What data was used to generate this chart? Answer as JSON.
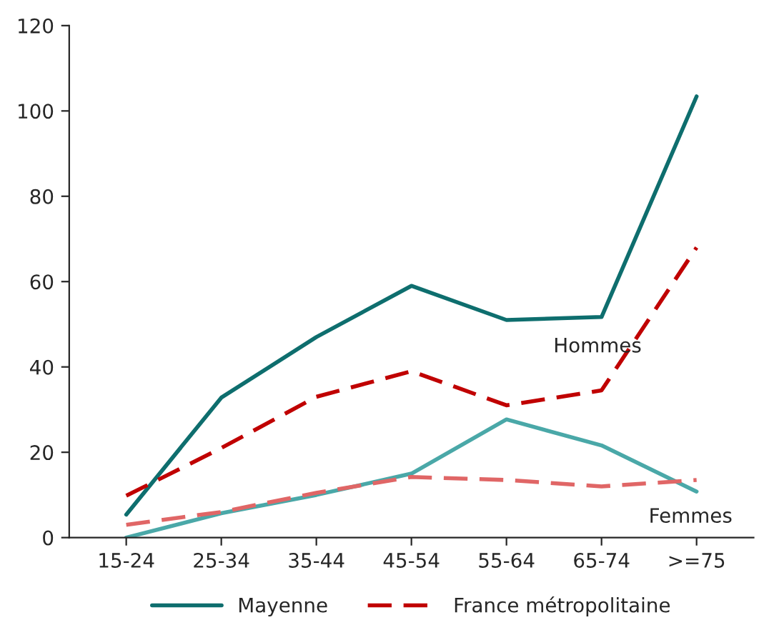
{
  "chart_data": {
    "type": "line",
    "categories": [
      "15-24",
      "25-34",
      "35-44",
      "45-54",
      "55-64",
      "65-74",
      ">=75"
    ],
    "ylim": [
      0,
      120
    ],
    "yticks": [
      0,
      20,
      40,
      60,
      80,
      100,
      120
    ],
    "grid": false,
    "legend": "bottom",
    "marker": "none",
    "series": [
      {
        "name": "Mayenne",
        "color": "#0e6e6e",
        "line_style": "solid",
        "values": [
          5.4,
          32.8,
          47,
          59,
          51,
          51.7,
          103.4
        ]
      },
      {
        "name": "France métropolitaine",
        "color": "#c00000",
        "line_style": "dashed",
        "values": [
          9.8,
          21,
          33,
          39,
          31,
          34.5,
          68
        ]
      },
      {
        "color": "#4aa8a8",
        "line_style": "solid",
        "values": [
          0,
          5.7,
          10,
          15,
          27.7,
          21.6,
          10.8
        ]
      },
      {
        "color": "#e06666",
        "line_style": "dashed",
        "values": [
          3,
          6,
          10.5,
          14.2,
          13.5,
          12,
          13.5
        ]
      }
    ],
    "annotations": [
      "Hommes",
      "Femmes"
    ]
  }
}
